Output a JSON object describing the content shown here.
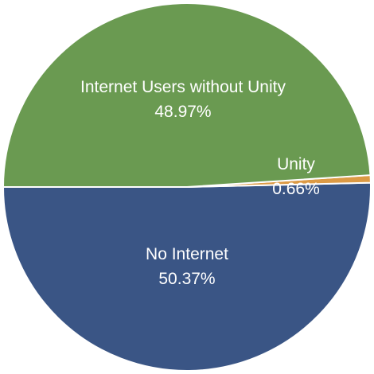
{
  "chart_data": {
    "type": "pie",
    "title": "",
    "slices": [
      {
        "label": "No Internet",
        "value": 50.37,
        "value_label": "50.37%",
        "color": "#3A5585"
      },
      {
        "label": "Unity",
        "value": 0.66,
        "value_label": "0.66%",
        "color": "#DC9A45"
      },
      {
        "label": "Internet Users without Unity",
        "value": 48.97,
        "value_label": "48.97%",
        "color": "#6A9A51"
      }
    ],
    "slice_border_color": "#ffffff"
  }
}
